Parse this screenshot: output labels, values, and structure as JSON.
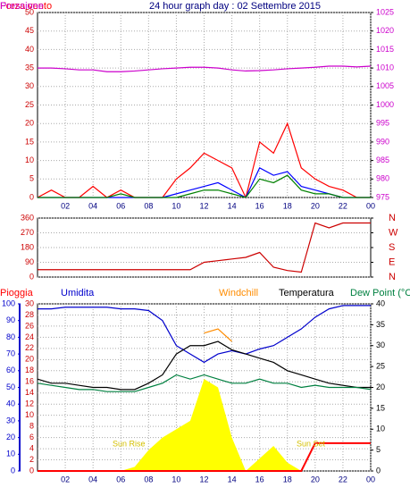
{
  "chart_data": [
    {
      "type": "line",
      "title": "24 hour graph day : 02 Settembre 2015",
      "x": [
        0,
        1,
        2,
        3,
        4,
        5,
        6,
        7,
        8,
        9,
        10,
        11,
        12,
        13,
        14,
        15,
        16,
        17,
        18,
        19,
        20,
        21,
        22,
        23,
        24
      ],
      "xlim": [
        0,
        24
      ],
      "xticks": [
        {
          "value": 2,
          "label": "02"
        },
        {
          "value": 4,
          "label": "04"
        },
        {
          "value": 6,
          "label": "06"
        },
        {
          "value": 8,
          "label": "08"
        },
        10,
        12,
        14,
        16,
        18,
        20,
        22,
        {
          "value": 24,
          "label": "00"
        }
      ],
      "ylim": [
        0,
        50
      ],
      "yticks": [
        0,
        5,
        10,
        15,
        20,
        25,
        30,
        35,
        40,
        45,
        50
      ],
      "y2lim": [
        975,
        1025
      ],
      "y2ticks": [
        975,
        980,
        985,
        990,
        995,
        1000,
        1005,
        1010,
        1015,
        1020,
        1025
      ],
      "grid": true,
      "series": [
        {
          "name": "Forza vento",
          "color": "#ff0000",
          "values": [
            0,
            2,
            0,
            0,
            3,
            0,
            2,
            0,
            0,
            0,
            5,
            8,
            12,
            10,
            8,
            0,
            15,
            12,
            20,
            8,
            5,
            3,
            2,
            0,
            0
          ]
        },
        {
          "color": "#0000ff",
          "values": [
            0,
            0,
            0,
            0,
            0,
            0,
            0,
            0,
            0,
            0,
            1,
            2,
            3,
            4,
            2,
            0,
            8,
            6,
            7,
            3,
            2,
            1,
            0,
            0,
            0
          ]
        },
        {
          "color": "#008000",
          "values": [
            0,
            0,
            0,
            0,
            0,
            0,
            1,
            0,
            0,
            0,
            0,
            1,
            2,
            2,
            1,
            0,
            5,
            4,
            6,
            2,
            1,
            1,
            0,
            0,
            0
          ]
        },
        {
          "name": "Pressione",
          "color": "#cc00cc",
          "axis": "y2",
          "values": [
            1010,
            1010,
            1009.8,
            1009.5,
            1009.5,
            1009,
            1009,
            1009.2,
            1009.5,
            1009.8,
            1010,
            1010.2,
            1010.2,
            1010,
            1009.5,
            1009.2,
            1009.3,
            1009.5,
            1009.8,
            1010,
            1010.2,
            1010.5,
            1010.5,
            1010.3,
            1010.5
          ]
        }
      ]
    },
    {
      "type": "line",
      "x": [
        0,
        1,
        2,
        3,
        4,
        5,
        6,
        7,
        8,
        9,
        10,
        11,
        12,
        13,
        14,
        15,
        16,
        17,
        18,
        19,
        20,
        21,
        22,
        23,
        24
      ],
      "xlim": [
        0,
        24
      ],
      "ylim": [
        0,
        360
      ],
      "yticks": [
        0,
        90,
        180,
        270,
        360
      ],
      "y2lim": [
        0,
        360
      ],
      "y2ticks": [
        {
          "value": 360,
          "label": "N"
        },
        {
          "value": 270,
          "label": "W"
        },
        {
          "value": 180,
          "label": "S"
        },
        {
          "value": 90,
          "label": "E"
        },
        {
          "value": 0,
          "label": "N"
        }
      ],
      "grid": true,
      "series": [
        {
          "color": "#cc0000",
          "values": [
            45,
            45,
            45,
            45,
            45,
            45,
            45,
            45,
            45,
            45,
            45,
            45,
            90,
            100,
            110,
            120,
            150,
            60,
            40,
            30,
            330,
            300,
            330,
            330,
            330
          ]
        }
      ]
    },
    {
      "type": "line",
      "x": [
        0,
        1,
        2,
        3,
        4,
        5,
        6,
        7,
        8,
        9,
        10,
        11,
        12,
        13,
        14,
        15,
        16,
        17,
        18,
        19,
        20,
        21,
        22,
        23,
        24
      ],
      "xlim": [
        0,
        24
      ],
      "xticks": [
        {
          "value": 2,
          "label": "02"
        },
        {
          "value": 4,
          "label": "04"
        },
        {
          "value": 6,
          "label": "06"
        },
        {
          "value": 8,
          "label": "08"
        },
        10,
        12,
        14,
        16,
        18,
        20,
        22,
        {
          "value": 24,
          "label": "00"
        }
      ],
      "ylim": [
        0,
        30
      ],
      "yticks": [
        0,
        2,
        4,
        6,
        8,
        10,
        12,
        14,
        16,
        18,
        20,
        22,
        24,
        26,
        28,
        30
      ],
      "y3lim": [
        0,
        100
      ],
      "y3ticks": [
        0,
        10,
        20,
        30,
        40,
        50,
        60,
        70,
        80,
        90,
        100
      ],
      "y2lim": [
        0,
        40
      ],
      "y2ticks": [
        0,
        5,
        10,
        15,
        20,
        25,
        30,
        35,
        40
      ],
      "grid": true,
      "annotations": [
        "Sun Rise",
        "Sun Set"
      ],
      "series": [
        {
          "color": "#ffff00",
          "axis": "y2",
          "area": true,
          "values": [
            0,
            0,
            0,
            0,
            0,
            0,
            0,
            1,
            5,
            8,
            10,
            12,
            22,
            20,
            8,
            0,
            3,
            6,
            2,
            0,
            0,
            0,
            0,
            0,
            0
          ]
        },
        {
          "name": "Pioggia",
          "color": "#ff0000",
          "values": [
            0,
            0,
            0,
            0,
            0,
            0,
            0,
            0,
            0,
            0,
            0,
            0,
            0,
            0,
            0,
            0,
            0,
            0,
            0,
            0,
            5,
            5,
            5,
            5,
            5
          ]
        },
        {
          "name": "Umidita",
          "color": "#0000cc",
          "axis": "y3",
          "values": [
            97,
            97,
            98,
            98,
            98,
            98,
            97,
            97,
            96,
            90,
            75,
            70,
            65,
            70,
            72,
            70,
            73,
            75,
            80,
            85,
            92,
            97,
            99,
            99,
            99
          ]
        },
        {
          "name": "Windchill",
          "color": "#ff8c00",
          "axis": "y2",
          "values": [
            null,
            null,
            null,
            null,
            null,
            null,
            null,
            null,
            null,
            null,
            null,
            null,
            33,
            34,
            31,
            null,
            null,
            null,
            null,
            null,
            null,
            null,
            null,
            null,
            null
          ]
        },
        {
          "name": "Temperatura",
          "color": "#000000",
          "axis": "y2",
          "values": [
            22,
            21,
            21,
            20.5,
            20,
            20,
            19.5,
            19.5,
            21,
            23,
            28,
            30,
            30,
            31,
            29,
            28,
            27,
            26,
            24,
            23,
            22,
            21,
            20.5,
            20,
            20
          ]
        },
        {
          "name": "Dew Point (°C",
          "color": "#008040",
          "axis": "y2",
          "values": [
            21,
            20.5,
            20,
            19.5,
            19.5,
            19,
            19,
            19,
            20,
            21,
            23,
            22,
            23,
            22,
            21,
            21,
            22,
            21,
            21,
            20,
            20.5,
            20,
            20,
            20,
            19.5
          ]
        }
      ]
    }
  ]
}
